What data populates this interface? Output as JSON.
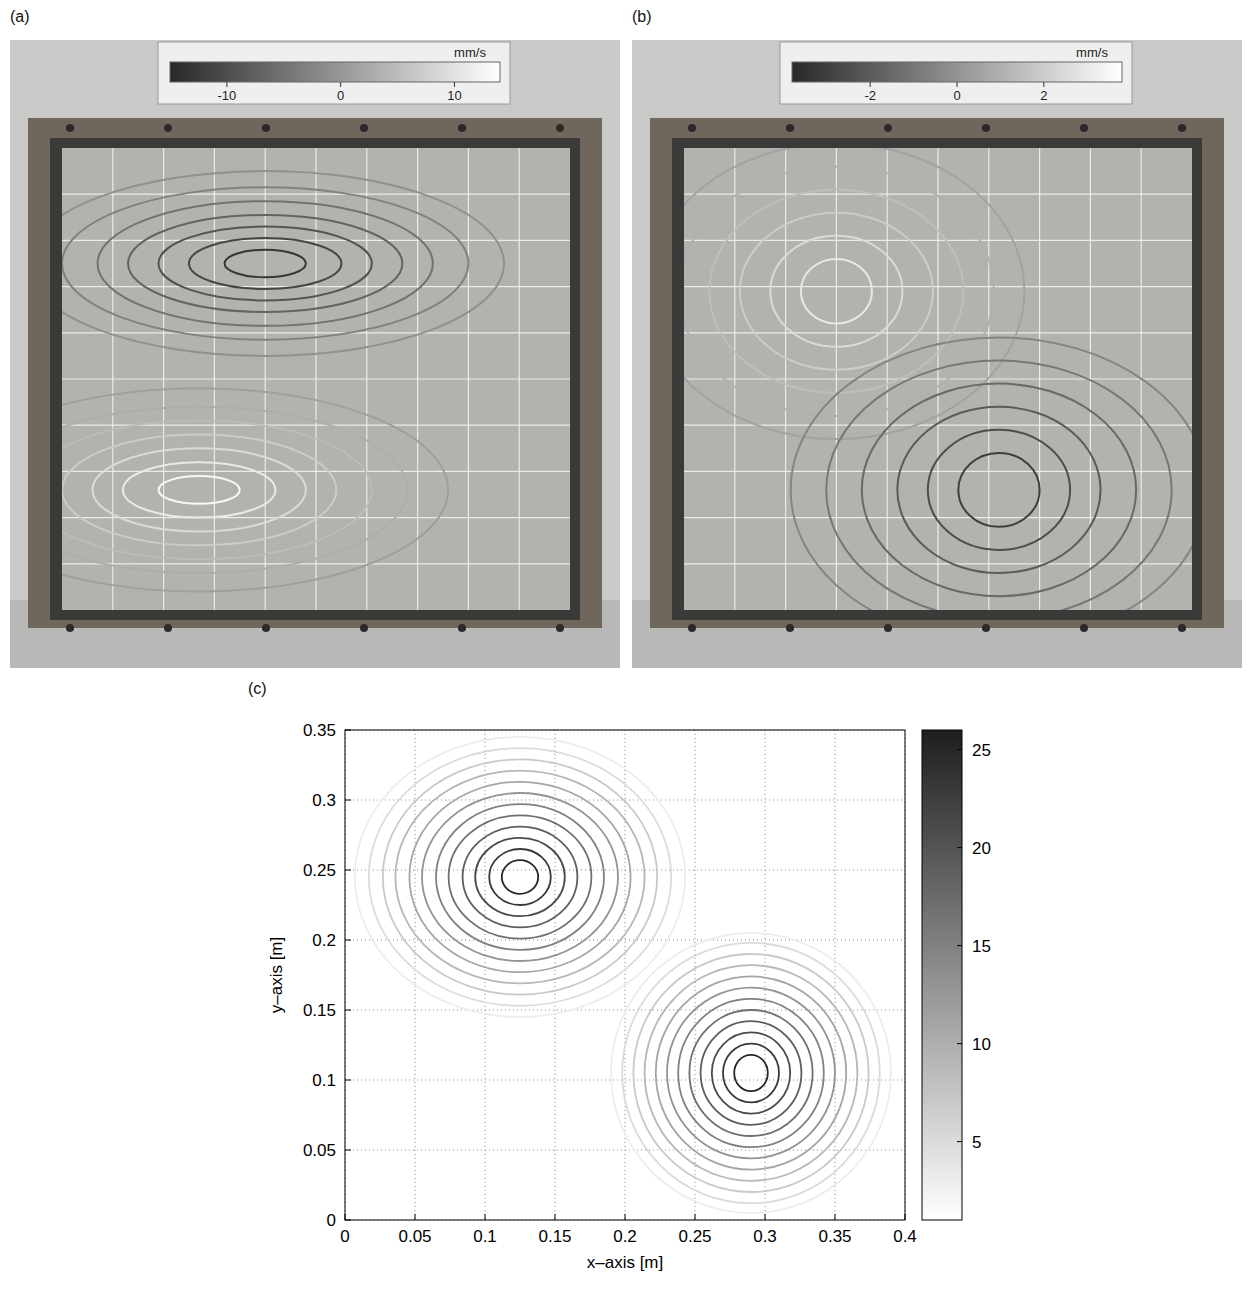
{
  "photos": [
    {
      "label": "(a)",
      "unit": "mm/s",
      "colorbar": {
        "range": [
          -15,
          14
        ],
        "ticks": [
          -10,
          0,
          10
        ]
      },
      "vortices": [
        {
          "center": [
            0.4,
            0.25
          ],
          "rings": [
            {
              "level": -13,
              "rx": 0.08,
              "ry": 0.03
            },
            {
              "level": -11,
              "rx": 0.15,
              "ry": 0.055
            },
            {
              "level": -9,
              "rx": 0.21,
              "ry": 0.08
            },
            {
              "level": -7,
              "rx": 0.27,
              "ry": 0.105
            },
            {
              "level": -5,
              "rx": 0.33,
              "ry": 0.135
            },
            {
              "level": -3,
              "rx": 0.4,
              "ry": 0.165
            },
            {
              "level": -1,
              "rx": 0.47,
              "ry": 0.2
            }
          ]
        },
        {
          "center": [
            0.27,
            0.74
          ],
          "rings": [
            {
              "level": 13,
              "rx": 0.08,
              "ry": 0.03
            },
            {
              "level": 11,
              "rx": 0.15,
              "ry": 0.06
            },
            {
              "level": 9,
              "rx": 0.21,
              "ry": 0.09
            },
            {
              "level": 7,
              "rx": 0.27,
              "ry": 0.12
            },
            {
              "level": 5,
              "rx": 0.34,
              "ry": 0.15
            },
            {
              "level": 3,
              "rx": 0.41,
              "ry": 0.18
            },
            {
              "level": 1,
              "rx": 0.49,
              "ry": 0.22
            }
          ]
        }
      ]
    },
    {
      "label": "(b)",
      "unit": "mm/s",
      "colorbar": {
        "range": [
          -3.8,
          3.8
        ],
        "ticks": [
          -2,
          0,
          2
        ]
      },
      "vortices": [
        {
          "center": [
            0.3,
            0.31
          ],
          "rings": [
            {
              "level": 3,
              "rx": 0.07,
              "ry": 0.07
            },
            {
              "level": 2.5,
              "rx": 0.13,
              "ry": 0.12
            },
            {
              "level": 2,
              "rx": 0.19,
              "ry": 0.17
            },
            {
              "level": 1.5,
              "rx": 0.25,
              "ry": 0.22
            },
            {
              "level": 1,
              "rx": 0.31,
              "ry": 0.27
            },
            {
              "level": 0.5,
              "rx": 0.37,
              "ry": 0.32
            }
          ]
        },
        {
          "center": [
            0.62,
            0.74
          ],
          "rings": [
            {
              "level": -3,
              "rx": 0.08,
              "ry": 0.08
            },
            {
              "level": -2.5,
              "rx": 0.14,
              "ry": 0.13
            },
            {
              "level": -2,
              "rx": 0.2,
              "ry": 0.18
            },
            {
              "level": -1.5,
              "rx": 0.27,
              "ry": 0.23
            },
            {
              "level": -1,
              "rx": 0.34,
              "ry": 0.28
            },
            {
              "level": -0.5,
              "rx": 0.41,
              "ry": 0.33
            }
          ]
        }
      ]
    }
  ],
  "chart_data": {
    "type": "contour",
    "label": "(c)",
    "xlabel": "x–axis [m]",
    "ylabel": "y–axis [m]",
    "xlim": [
      0,
      0.4
    ],
    "ylim": [
      0,
      0.35
    ],
    "xticks": [
      0,
      0.05,
      0.1,
      0.15,
      0.2,
      0.25,
      0.3,
      0.35,
      0.4
    ],
    "yticks": [
      0,
      0.05,
      0.1,
      0.15,
      0.2,
      0.25,
      0.3,
      0.35
    ],
    "grid": true,
    "colorbar": {
      "range": [
        1,
        26
      ],
      "ticks": [
        5,
        10,
        15,
        20,
        25
      ]
    },
    "vortices": [
      {
        "center": [
          0.125,
          0.245
        ],
        "rings": [
          {
            "level": 25,
            "rx": 0.013,
            "ry": 0.012
          },
          {
            "level": 23,
            "rx": 0.022,
            "ry": 0.02
          },
          {
            "level": 21,
            "rx": 0.032,
            "ry": 0.028
          },
          {
            "level": 19,
            "rx": 0.041,
            "ry": 0.036
          },
          {
            "level": 17,
            "rx": 0.051,
            "ry": 0.044
          },
          {
            "level": 15,
            "rx": 0.06,
            "ry": 0.052
          },
          {
            "level": 13,
            "rx": 0.07,
            "ry": 0.06
          },
          {
            "level": 11,
            "rx": 0.079,
            "ry": 0.068
          },
          {
            "level": 9,
            "rx": 0.089,
            "ry": 0.076
          },
          {
            "level": 7,
            "rx": 0.098,
            "ry": 0.084
          },
          {
            "level": 5,
            "rx": 0.108,
            "ry": 0.092
          },
          {
            "level": 3,
            "rx": 0.118,
            "ry": 0.1
          }
        ]
      },
      {
        "center": [
          0.29,
          0.105
        ],
        "rings": [
          {
            "level": 25,
            "rx": 0.012,
            "ry": 0.013
          },
          {
            "level": 23,
            "rx": 0.02,
            "ry": 0.021
          },
          {
            "level": 21,
            "rx": 0.028,
            "ry": 0.029
          },
          {
            "level": 19,
            "rx": 0.036,
            "ry": 0.037
          },
          {
            "level": 17,
            "rx": 0.044,
            "ry": 0.045
          },
          {
            "level": 15,
            "rx": 0.052,
            "ry": 0.053
          },
          {
            "level": 13,
            "rx": 0.06,
            "ry": 0.061
          },
          {
            "level": 11,
            "rx": 0.068,
            "ry": 0.069
          },
          {
            "level": 9,
            "rx": 0.076,
            "ry": 0.077
          },
          {
            "level": 7,
            "rx": 0.084,
            "ry": 0.085
          },
          {
            "level": 5,
            "rx": 0.092,
            "ry": 0.093
          },
          {
            "level": 3,
            "rx": 0.1,
            "ry": 0.1
          }
        ]
      }
    ]
  }
}
